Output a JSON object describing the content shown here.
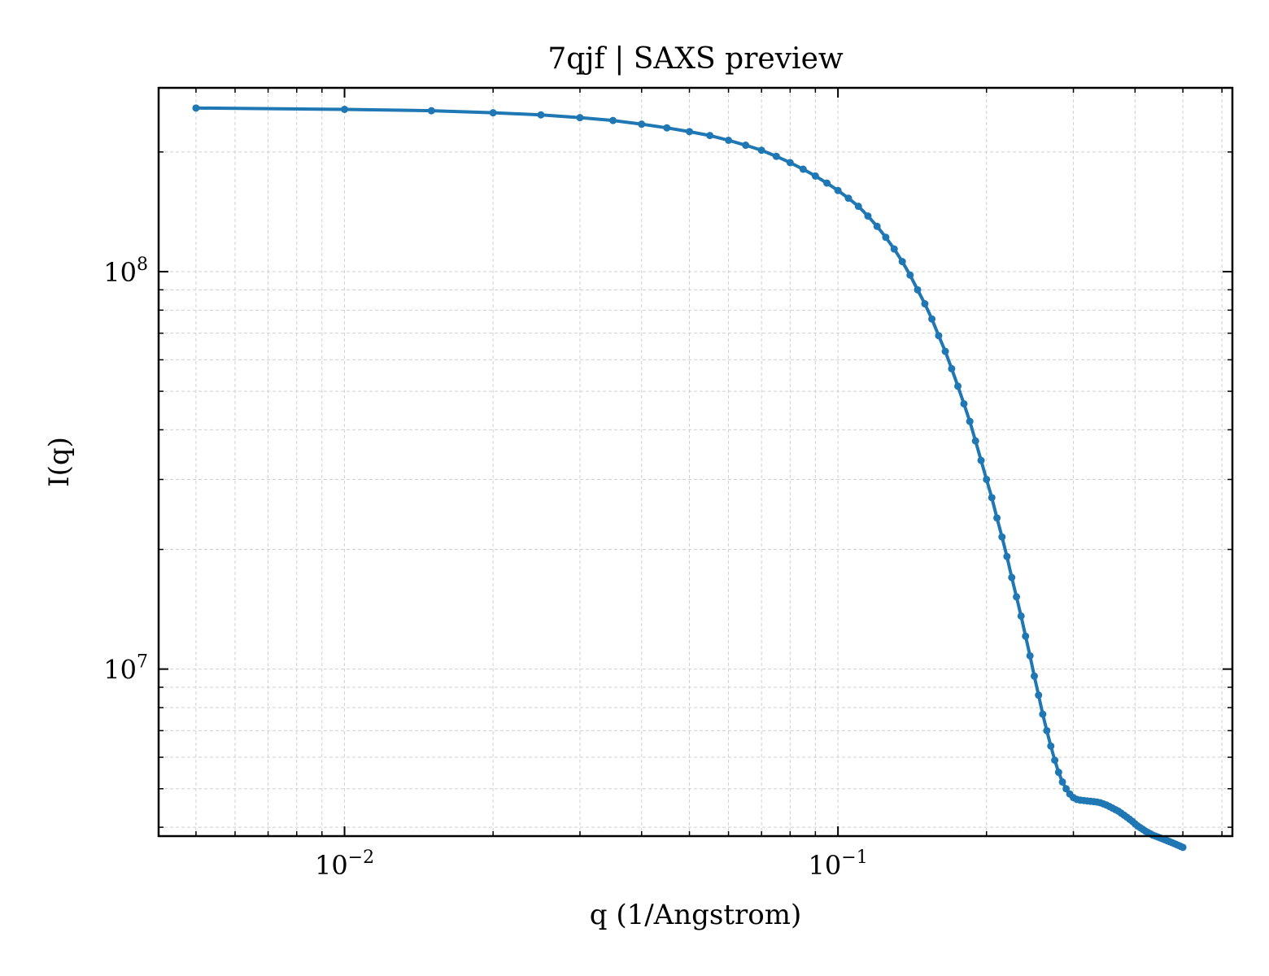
{
  "chart_data": {
    "type": "line",
    "title": "7qjf | SAXS preview",
    "xlabel": "q (1/Angstrom)",
    "ylabel": "I(q)",
    "xscale": "log",
    "yscale": "log",
    "xlim": [
      0.0042,
      0.63
    ],
    "ylim": [
      3800000,
      290000000
    ],
    "x_ticks": [
      {
        "value": 0.01,
        "base": "10",
        "exp": "−2"
      },
      {
        "value": 0.1,
        "base": "10",
        "exp": "−1"
      }
    ],
    "y_ticks": [
      {
        "value": 10000000,
        "base": "10",
        "exp": "7"
      },
      {
        "value": 100000000,
        "base": "10",
        "exp": "8"
      }
    ],
    "grid": true,
    "line_color": "#1f77b4",
    "series": [
      {
        "x": [
          0.005,
          0.01,
          0.015,
          0.02,
          0.025,
          0.03,
          0.035,
          0.04,
          0.045,
          0.05,
          0.055,
          0.06,
          0.065,
          0.07,
          0.075,
          0.08,
          0.085,
          0.09,
          0.095,
          0.1,
          0.105,
          0.11,
          0.115,
          0.12,
          0.125,
          0.13,
          0.135,
          0.14,
          0.145,
          0.15,
          0.155,
          0.16,
          0.165,
          0.17,
          0.175,
          0.18,
          0.185,
          0.19,
          0.195,
          0.2,
          0.205,
          0.21,
          0.215,
          0.22,
          0.225,
          0.23,
          0.235,
          0.24,
          0.245,
          0.25,
          0.255,
          0.26,
          0.265,
          0.27,
          0.275,
          0.28,
          0.285,
          0.29,
          0.295,
          0.3,
          0.305,
          0.31,
          0.315,
          0.32,
          0.325,
          0.33,
          0.335,
          0.34,
          0.345,
          0.35,
          0.355,
          0.36,
          0.365,
          0.37,
          0.375,
          0.38,
          0.385,
          0.39,
          0.395,
          0.4,
          0.405,
          0.41,
          0.415,
          0.42,
          0.425,
          0.43,
          0.435,
          0.44,
          0.445,
          0.45,
          0.455,
          0.46,
          0.465,
          0.47,
          0.475,
          0.48,
          0.485,
          0.49,
          0.495,
          0.5
        ],
        "y": [
          258000000,
          256000000,
          254000000,
          251000000,
          248000000,
          244000000,
          240000000,
          235000000,
          230000000,
          225000000,
          220000000,
          214000000,
          208000000,
          202000000,
          195000000,
          188000000,
          181000000,
          174000000,
          167000000,
          160000000,
          153000000,
          146000000,
          138000000,
          130000000,
          122000000,
          114000000,
          106000000,
          98000000,
          90000000,
          83000000,
          76000000,
          69000000,
          63000000,
          57000000,
          51500000,
          46500000,
          42000000,
          37500000,
          33500000,
          30000000,
          27000000,
          24000000,
          21500000,
          19200000,
          17000000,
          15200000,
          13600000,
          12100000,
          10800000,
          9600000,
          8600000,
          7700000,
          7000000,
          6400000,
          5900000,
          5500000,
          5200000,
          5000000,
          4850000,
          4750000,
          4700000,
          4680000,
          4670000,
          4660000,
          4650000,
          4640000,
          4630000,
          4610000,
          4580000,
          4550000,
          4510000,
          4470000,
          4430000,
          4390000,
          4340000,
          4290000,
          4240000,
          4190000,
          4140000,
          4080000,
          4030000,
          3990000,
          3950000,
          3910000,
          3880000,
          3850000,
          3820000,
          3800000,
          3780000,
          3760000,
          3740000,
          3720000,
          3700000,
          3680000,
          3660000,
          3640000,
          3620000,
          3600000,
          3580000,
          3560000
        ]
      }
    ]
  }
}
